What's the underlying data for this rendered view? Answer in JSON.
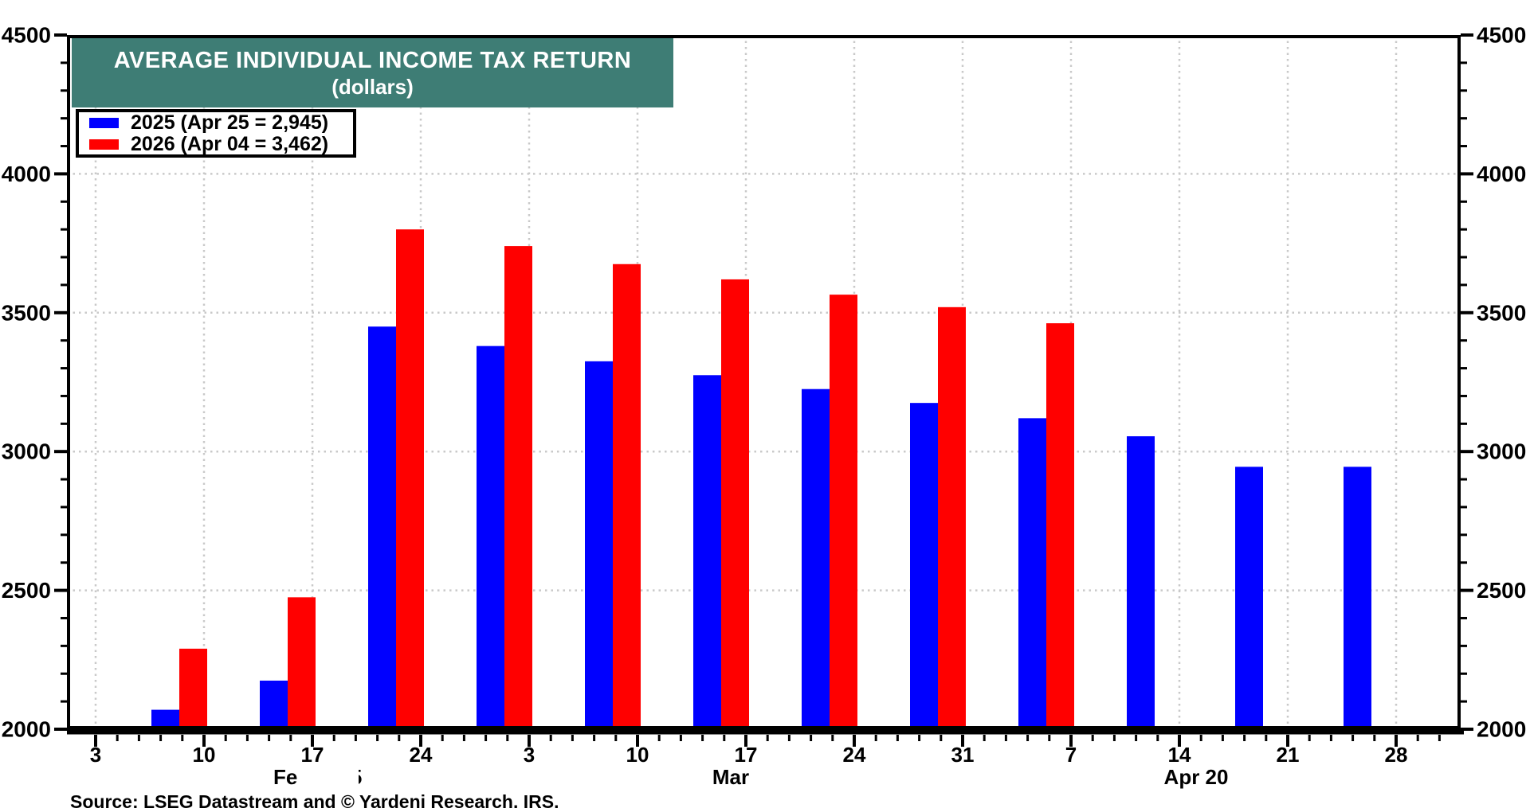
{
  "title": {
    "line1": "AVERAGE INDIVIDUAL INCOME TAX RETURN",
    "line2": "(dollars)"
  },
  "legend": {
    "items": [
      {
        "label": "2025 (Apr 25 = 2,945)",
        "color": "#0000ff"
      },
      {
        "label": "2026 (Apr 04 = 3,462)",
        "color": "#ff0000"
      }
    ]
  },
  "source": "Source: LSEG Datastream and © Yardeni Research. IRS.",
  "colors": {
    "banner": "#3E7D75",
    "series_2025": "#0000ff",
    "series_2026": "#ff0000",
    "grid": "#c9c9c9",
    "axis": "#000000"
  },
  "months": {
    "feb": {
      "text": "Feb 2025",
      "partially_obscured": true
    },
    "mar": {
      "text": "Mar"
    },
    "apr": {
      "text": "Apr 20"
    }
  },
  "chart_data": {
    "type": "bar",
    "title": "AVERAGE INDIVIDUAL INCOME TAX RETURN (dollars)",
    "xlabel": "",
    "ylabel": "",
    "ylim": [
      2000,
      4500
    ],
    "y_ticks": [
      2000,
      2500,
      3000,
      3500,
      4000,
      4500
    ],
    "y_axis_sides": [
      "left",
      "right"
    ],
    "grid": true,
    "legend_position": "top-left",
    "x_tick_labels": [
      "3",
      "10",
      "17",
      "24",
      "3",
      "10",
      "17",
      "24",
      "31",
      "7",
      "14",
      "21",
      "28"
    ],
    "month_labels": [
      {
        "text": "Feb 2025",
        "tick_index": 2,
        "partially_obscured": true
      },
      {
        "text": "Mar",
        "tick_index": 6
      },
      {
        "text": "Apr 20",
        "tick_index": 10
      }
    ],
    "bar_week_indices": [
      1,
      2,
      3,
      4,
      5,
      6,
      7,
      8,
      9,
      10,
      11,
      12
    ],
    "series": [
      {
        "name": "2025 (Apr 25 = 2,945)",
        "color": "#0000ff",
        "values": [
          2070,
          2175,
          3450,
          3380,
          3325,
          3275,
          3225,
          3175,
          3120,
          3055,
          2945,
          2945
        ]
      },
      {
        "name": "2026 (Apr 04 = 3,462)",
        "color": "#ff0000",
        "values": [
          2290,
          2475,
          3800,
          3740,
          3675,
          3620,
          3565,
          3520,
          3462,
          null,
          null,
          null
        ]
      }
    ]
  }
}
